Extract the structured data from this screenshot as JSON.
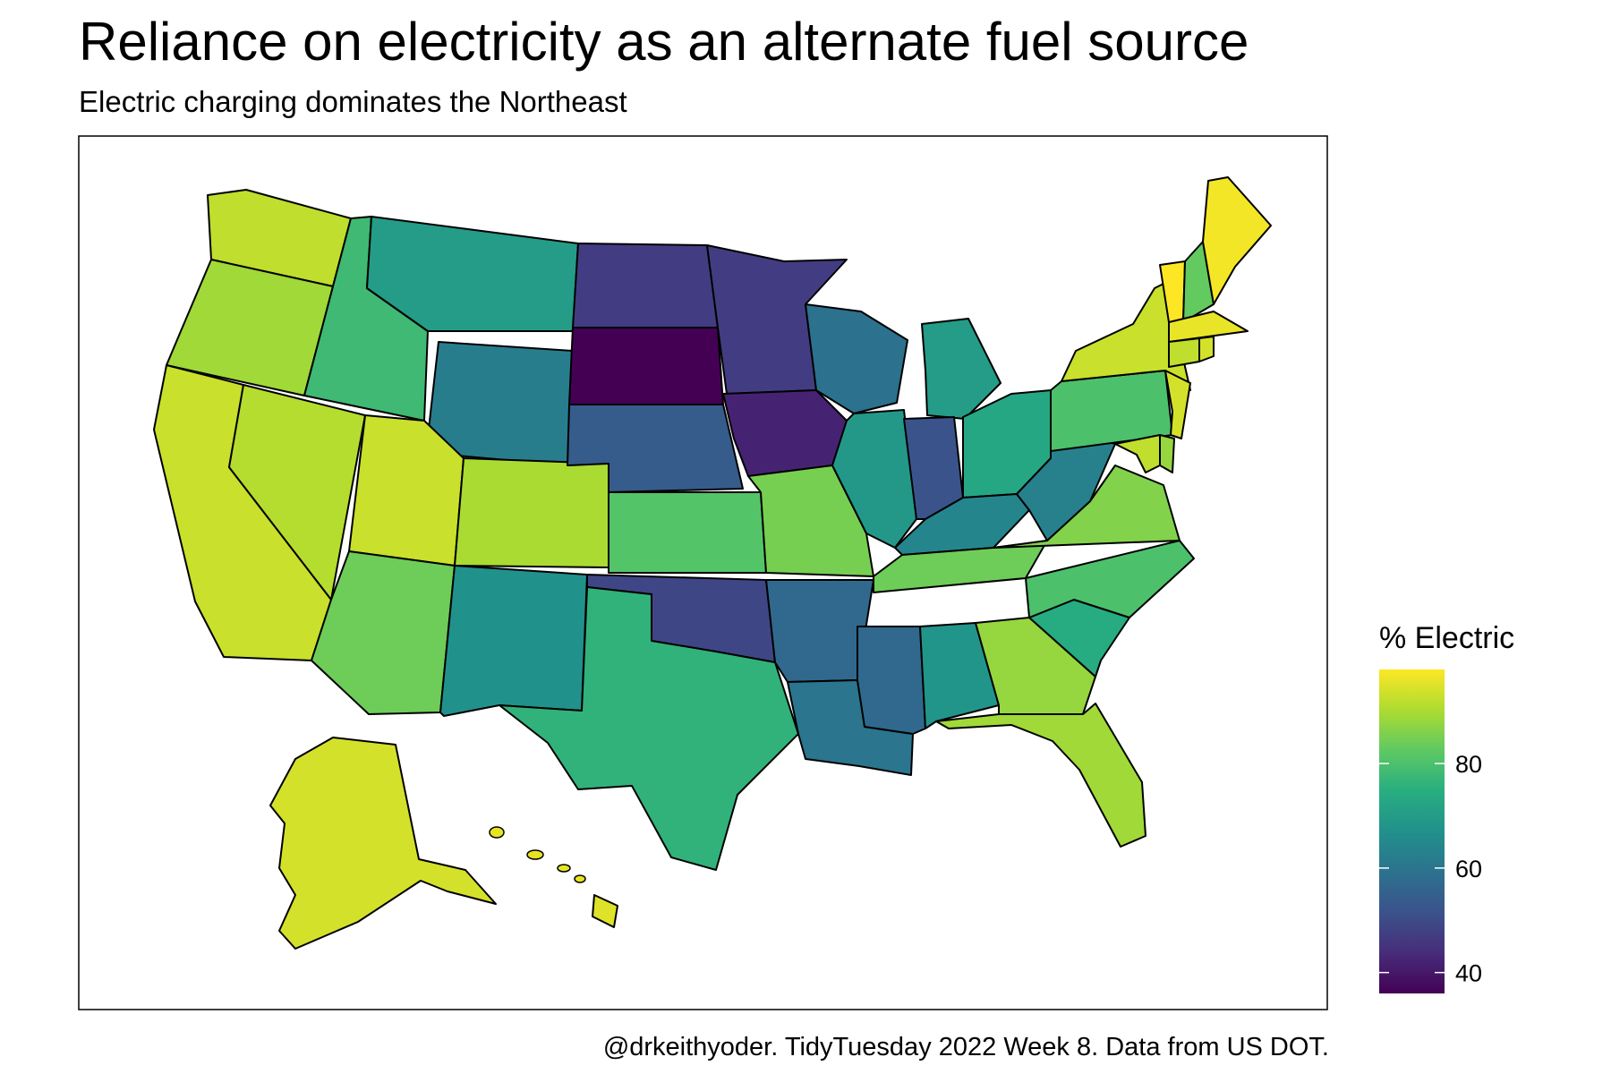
{
  "chart_data": {
    "type": "choropleth",
    "title": "Reliance on electricity as an alternate fuel source",
    "subtitle": "Electric charging dominates the Northeast",
    "caption": "@drkeithyoder. TidyTuesday 2022 Week 8. Data from US DOT.",
    "legend": {
      "title": "% Electric",
      "palette": "viridis",
      "range": [
        36,
        98
      ],
      "ticks": [
        40,
        60,
        80
      ],
      "placement": "right"
    },
    "regions": [
      {
        "name": "WA",
        "value": 92
      },
      {
        "name": "OR",
        "value": 89
      },
      {
        "name": "CA",
        "value": 93
      },
      {
        "name": "NV",
        "value": 91
      },
      {
        "name": "ID",
        "value": 78
      },
      {
        "name": "MT",
        "value": 70
      },
      {
        "name": "WY",
        "value": 62
      },
      {
        "name": "UT",
        "value": 93
      },
      {
        "name": "AZ",
        "value": 84
      },
      {
        "name": "CO",
        "value": 90
      },
      {
        "name": "NM",
        "value": 67
      },
      {
        "name": "ND",
        "value": 47
      },
      {
        "name": "SD",
        "value": 36
      },
      {
        "name": "NE",
        "value": 54
      },
      {
        "name": "KS",
        "value": 81
      },
      {
        "name": "OK",
        "value": 49
      },
      {
        "name": "TX",
        "value": 76
      },
      {
        "name": "MN",
        "value": 47
      },
      {
        "name": "IA",
        "value": 42
      },
      {
        "name": "MO",
        "value": 85
      },
      {
        "name": "AR",
        "value": 57
      },
      {
        "name": "LA",
        "value": 60
      },
      {
        "name": "WI",
        "value": 59
      },
      {
        "name": "IL",
        "value": 69
      },
      {
        "name": "MI",
        "value": 70
      },
      {
        "name": "IN",
        "value": 52
      },
      {
        "name": "OH",
        "value": 73
      },
      {
        "name": "KY",
        "value": 64
      },
      {
        "name": "TN",
        "value": 84
      },
      {
        "name": "MS",
        "value": 57
      },
      {
        "name": "AL",
        "value": 68
      },
      {
        "name": "GA",
        "value": 88
      },
      {
        "name": "FL",
        "value": 89
      },
      {
        "name": "SC",
        "value": 74
      },
      {
        "name": "NC",
        "value": 80
      },
      {
        "name": "VA",
        "value": 86
      },
      {
        "name": "WV",
        "value": 63
      },
      {
        "name": "PA",
        "value": 80
      },
      {
        "name": "NY",
        "value": 93
      },
      {
        "name": "VT",
        "value": 98
      },
      {
        "name": "NH",
        "value": 83
      },
      {
        "name": "ME",
        "value": 97
      },
      {
        "name": "MA",
        "value": 96
      },
      {
        "name": "CT",
        "value": 92
      },
      {
        "name": "RI",
        "value": 94
      },
      {
        "name": "NJ",
        "value": 94
      },
      {
        "name": "DE",
        "value": 88
      },
      {
        "name": "MD",
        "value": 92
      },
      {
        "name": "AK",
        "value": 94
      },
      {
        "name": "HI",
        "value": 95
      }
    ]
  }
}
